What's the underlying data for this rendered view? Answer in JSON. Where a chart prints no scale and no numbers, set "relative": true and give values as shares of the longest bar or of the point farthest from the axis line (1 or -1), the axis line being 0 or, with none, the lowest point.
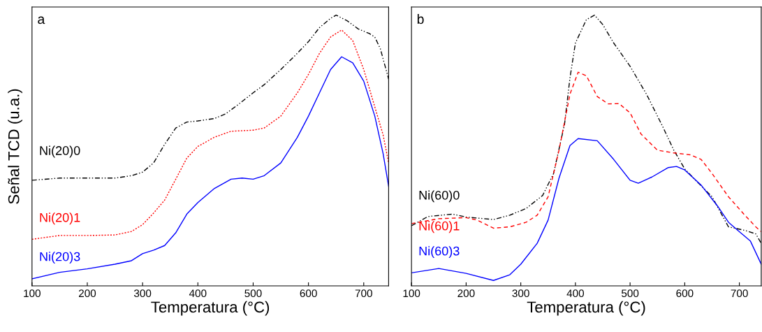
{
  "chart_data": [
    {
      "type": "line",
      "relative": true,
      "xlabel": "Temperatura (°C)",
      "ylabel": "Señal TCD (u.a.)",
      "annotations": [
        "a"
      ],
      "xlim": [
        100,
        745
      ],
      "xticks": [
        100,
        200,
        300,
        400,
        500,
        600,
        700
      ],
      "tick_labels": "x",
      "grid": false,
      "legend": false,
      "series": [
        {
          "name": "Ni(20)0",
          "color": "#000000",
          "line_style": "dashdot",
          "x": [
            100,
            150,
            200,
            250,
            280,
            300,
            320,
            340,
            360,
            380,
            400,
            430,
            450,
            470,
            500,
            520,
            550,
            580,
            600,
            620,
            640,
            650,
            670,
            690,
            710,
            720,
            730,
            745
          ],
          "values": [
            0.39,
            0.398,
            0.398,
            0.398,
            0.407,
            0.42,
            0.454,
            0.523,
            0.583,
            0.605,
            0.609,
            0.618,
            0.635,
            0.665,
            0.713,
            0.743,
            0.799,
            0.859,
            0.902,
            0.954,
            0.988,
            1.0,
            0.979,
            0.949,
            0.932,
            0.919,
            0.876,
            0.764
          ]
        },
        {
          "name": "Ni(20)1",
          "color": "#ff0000",
          "line_style": "dotted",
          "x": [
            100,
            150,
            200,
            250,
            280,
            300,
            320,
            340,
            360,
            380,
            400,
            430,
            460,
            500,
            520,
            550,
            580,
            600,
            620,
            640,
            660,
            680,
            700,
            720,
            735,
            745
          ],
          "values": [
            0.172,
            0.186,
            0.186,
            0.188,
            0.201,
            0.226,
            0.269,
            0.317,
            0.394,
            0.472,
            0.515,
            0.549,
            0.571,
            0.575,
            0.583,
            0.627,
            0.713,
            0.781,
            0.859,
            0.919,
            0.945,
            0.906,
            0.799,
            0.661,
            0.558,
            0.454
          ]
        },
        {
          "name": "Ni(20)3",
          "color": "#0000ff",
          "line_style": "solid",
          "x": [
            100,
            150,
            200,
            250,
            280,
            300,
            320,
            340,
            360,
            380,
            400,
            430,
            460,
            480,
            500,
            520,
            550,
            580,
            600,
            620,
            640,
            660,
            680,
            700,
            720,
            735,
            745
          ],
          "values": [
            0.026,
            0.05,
            0.063,
            0.08,
            0.093,
            0.119,
            0.132,
            0.149,
            0.196,
            0.265,
            0.308,
            0.36,
            0.394,
            0.398,
            0.394,
            0.407,
            0.454,
            0.549,
            0.627,
            0.713,
            0.799,
            0.846,
            0.824,
            0.756,
            0.627,
            0.489,
            0.368
          ]
        }
      ]
    },
    {
      "type": "line",
      "relative": true,
      "xlabel": "Temperatura (°C)",
      "annotations": [
        "b"
      ],
      "xlim": [
        100,
        740
      ],
      "xticks": [
        100,
        200,
        300,
        400,
        500,
        600,
        700
      ],
      "tick_labels": "x",
      "grid": false,
      "legend": false,
      "series": [
        {
          "name": "Ni(60)0",
          "color": "#000000",
          "line_style": "dashdot",
          "x": [
            100,
            130,
            175,
            200,
            250,
            280,
            310,
            340,
            360,
            380,
            390,
            400,
            420,
            435,
            450,
            470,
            500,
            530,
            560,
            580,
            600,
            620,
            650,
            680,
            710,
            730,
            740
          ],
          "values": [
            0.222,
            0.256,
            0.265,
            0.254,
            0.245,
            0.261,
            0.286,
            0.334,
            0.415,
            0.596,
            0.768,
            0.897,
            0.983,
            1.0,
            0.965,
            0.897,
            0.811,
            0.708,
            0.587,
            0.501,
            0.432,
            0.39,
            0.329,
            0.218,
            0.205,
            0.192,
            0.157
          ]
        },
        {
          "name": "Ni(60)1",
          "color": "#ff0000",
          "line_style": "dashed",
          "x": [
            100,
            150,
            200,
            220,
            250,
            280,
            310,
            330,
            350,
            370,
            390,
            405,
            420,
            440,
            460,
            480,
            500,
            520,
            550,
            580,
            610,
            630,
            650,
            680,
            710,
            730,
            740
          ],
          "values": [
            0.23,
            0.248,
            0.252,
            0.243,
            0.213,
            0.218,
            0.235,
            0.261,
            0.329,
            0.501,
            0.708,
            0.789,
            0.776,
            0.699,
            0.672,
            0.673,
            0.639,
            0.561,
            0.501,
            0.491,
            0.484,
            0.467,
            0.415,
            0.329,
            0.261,
            0.218,
            0.2
          ]
        },
        {
          "name": "Ni(60)3",
          "color": "#0000ff",
          "line_style": "solid",
          "x": [
            100,
            150,
            200,
            250,
            280,
            300,
            330,
            350,
            370,
            390,
            405,
            440,
            470,
            500,
            515,
            540,
            570,
            585,
            600,
            630,
            660,
            680,
            700,
            720,
            740
          ],
          "values": [
            0.048,
            0.064,
            0.046,
            0.02,
            0.041,
            0.08,
            0.157,
            0.243,
            0.398,
            0.518,
            0.544,
            0.536,
            0.467,
            0.39,
            0.379,
            0.402,
            0.437,
            0.441,
            0.428,
            0.372,
            0.295,
            0.235,
            0.2,
            0.166,
            0.08
          ]
        }
      ]
    }
  ]
}
